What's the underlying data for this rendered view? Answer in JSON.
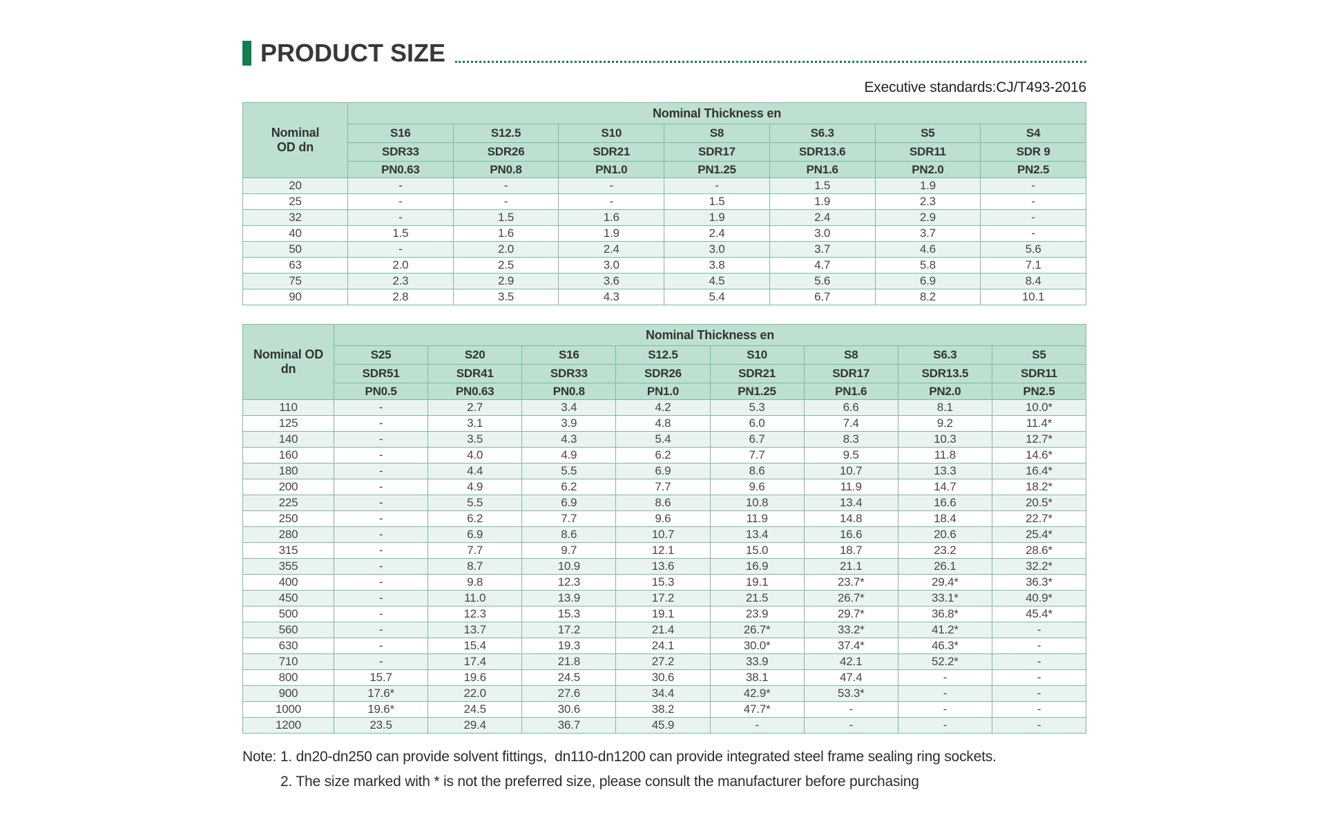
{
  "page": {
    "title": "PRODUCT SIZE",
    "standards_line": "Executive standards:CJ/T493-2016",
    "notes": [
      "Note: 1. dn20-dn250 can provide solvent fittings,  dn110-dn1200 can provide integrated steel frame sealing ring sockets.",
      "2. The size marked with * is not the preferred size, please consult the manufacturer before purchasing"
    ]
  },
  "colors": {
    "accent_green": "#0f7f4d",
    "table_header_bg": "#bde0d1",
    "table_row_tint": "#e9f4ef",
    "table_border": "#7db99e",
    "title_text": "#383838",
    "body_text": "#454545"
  },
  "tables": [
    {
      "od_header": "Nominal\nOD dn",
      "thickness_header": "Nominal Thickness en",
      "s_classes": [
        "S16",
        "S12.5",
        "S10",
        "S8",
        "S6.3",
        "S5",
        "S4"
      ],
      "sdr_row": [
        "SDR33",
        "SDR26",
        "SDR21",
        "SDR17",
        "SDR13.6",
        "SDR11",
        "SDR 9"
      ],
      "pn_row": [
        "PN0.63",
        "PN0.8",
        "PN1.0",
        "PN1.25",
        "PN1.6",
        "PN2.0",
        "PN2.5"
      ],
      "rows": [
        {
          "dn": "20",
          "values": [
            "-",
            "-",
            "-",
            "-",
            "1.5",
            "1.9",
            "-"
          ]
        },
        {
          "dn": "25",
          "values": [
            "-",
            "-",
            "-",
            "1.5",
            "1.9",
            "2.3",
            "-"
          ]
        },
        {
          "dn": "32",
          "values": [
            "-",
            "1.5",
            "1.6",
            "1.9",
            "2.4",
            "2.9",
            "-"
          ]
        },
        {
          "dn": "40",
          "values": [
            "1.5",
            "1.6",
            "1.9",
            "2.4",
            "3.0",
            "3.7",
            "-"
          ]
        },
        {
          "dn": "50",
          "values": [
            "-",
            "2.0",
            "2.4",
            "3.0",
            "3.7",
            "4.6",
            "5.6"
          ]
        },
        {
          "dn": "63",
          "values": [
            "2.0",
            "2.5",
            "3.0",
            "3.8",
            "4.7",
            "5.8",
            "7.1"
          ]
        },
        {
          "dn": "75",
          "values": [
            "2.3",
            "2.9",
            "3.6",
            "4.5",
            "5.6",
            "6.9",
            "8.4"
          ]
        },
        {
          "dn": "90",
          "values": [
            "2.8",
            "3.5",
            "4.3",
            "5.4",
            "6.7",
            "8.2",
            "10.1"
          ]
        }
      ]
    },
    {
      "od_header": "Nominal OD dn",
      "thickness_header": "Nominal Thickness en",
      "s_classes": [
        "S25",
        "S20",
        "S16",
        "S12.5",
        "S10",
        "S8",
        "S6.3",
        "S5"
      ],
      "sdr_row": [
        "SDR51",
        "SDR41",
        "SDR33",
        "SDR26",
        "SDR21",
        "SDR17",
        "SDR13.5",
        "SDR11"
      ],
      "pn_row": [
        "PN0.5",
        "PN0.63",
        "PN0.8",
        "PN1.0",
        "PN1.25",
        "PN1.6",
        "PN2.0",
        "PN2.5"
      ],
      "rows": [
        {
          "dn": "110",
          "values": [
            "-",
            "2.7",
            "3.4",
            "4.2",
            "5.3",
            "6.6",
            "8.1",
            "10.0*"
          ]
        },
        {
          "dn": "125",
          "values": [
            "-",
            "3.1",
            "3.9",
            "4.8",
            "6.0",
            "7.4",
            "9.2",
            "11.4*"
          ]
        },
        {
          "dn": "140",
          "values": [
            "-",
            "3.5",
            "4.3",
            "5.4",
            "6.7",
            "8.3",
            "10.3",
            "12.7*"
          ]
        },
        {
          "dn": "160",
          "values": [
            "-",
            "4.0",
            "4.9",
            "6.2",
            "7.7",
            "9.5",
            "11.8",
            "14.6*"
          ]
        },
        {
          "dn": "180",
          "values": [
            "-",
            "4.4",
            "5.5",
            "6.9",
            "8.6",
            "10.7",
            "13.3",
            "16.4*"
          ]
        },
        {
          "dn": "200",
          "values": [
            "-",
            "4.9",
            "6.2",
            "7.7",
            "9.6",
            "11.9",
            "14.7",
            "18.2*"
          ]
        },
        {
          "dn": "225",
          "values": [
            "-",
            "5.5",
            "6.9",
            "8.6",
            "10.8",
            "13.4",
            "16.6",
            "20.5*"
          ]
        },
        {
          "dn": "250",
          "values": [
            "-",
            "6.2",
            "7.7",
            "9.6",
            "11.9",
            "14.8",
            "18.4",
            "22.7*"
          ]
        },
        {
          "dn": "280",
          "values": [
            "-",
            "6.9",
            "8.6",
            "10.7",
            "13.4",
            "16.6",
            "20.6",
            "25.4*"
          ]
        },
        {
          "dn": "315",
          "values": [
            "-",
            "7.7",
            "9.7",
            "12.1",
            "15.0",
            "18.7",
            "23.2",
            "28.6*"
          ]
        },
        {
          "dn": "355",
          "values": [
            "-",
            "8.7",
            "10.9",
            "13.6",
            "16.9",
            "21.1",
            "26.1",
            "32.2*"
          ]
        },
        {
          "dn": "400",
          "values": [
            "-",
            "9.8",
            "12.3",
            "15.3",
            "19.1",
            "23.7*",
            "29.4*",
            "36.3*"
          ]
        },
        {
          "dn": "450",
          "values": [
            "-",
            "11.0",
            "13.9",
            "17.2",
            "21.5",
            "26.7*",
            "33.1*",
            "40.9*"
          ]
        },
        {
          "dn": "500",
          "values": [
            "-",
            "12.3",
            "15.3",
            "19.1",
            "23.9",
            "29.7*",
            "36.8*",
            "45.4*"
          ]
        },
        {
          "dn": "560",
          "values": [
            "-",
            "13.7",
            "17.2",
            "21.4",
            "26.7*",
            "33.2*",
            "41.2*",
            "-"
          ]
        },
        {
          "dn": "630",
          "values": [
            "-",
            "15.4",
            "19.3",
            "24.1",
            "30.0*",
            "37.4*",
            "46.3*",
            "-"
          ]
        },
        {
          "dn": "710",
          "values": [
            "-",
            "17.4",
            "21.8",
            "27.2",
            "33.9",
            "42.1",
            "52.2*",
            "-"
          ]
        },
        {
          "dn": "800",
          "values": [
            "15.7",
            "19.6",
            "24.5",
            "30.6",
            "38.1",
            "47.4",
            "-",
            "-"
          ]
        },
        {
          "dn": "900",
          "values": [
            "17.6*",
            "22.0",
            "27.6",
            "34.4",
            "42.9*",
            "53.3*",
            "-",
            "-"
          ]
        },
        {
          "dn": "1000",
          "values": [
            "19.6*",
            "24.5",
            "30.6",
            "38.2",
            "47.7*",
            "-",
            "-",
            "-"
          ]
        },
        {
          "dn": "1200",
          "values": [
            "23.5",
            "29.4",
            "36.7",
            "45.9",
            "-",
            "-",
            "-",
            "-"
          ]
        }
      ]
    }
  ]
}
